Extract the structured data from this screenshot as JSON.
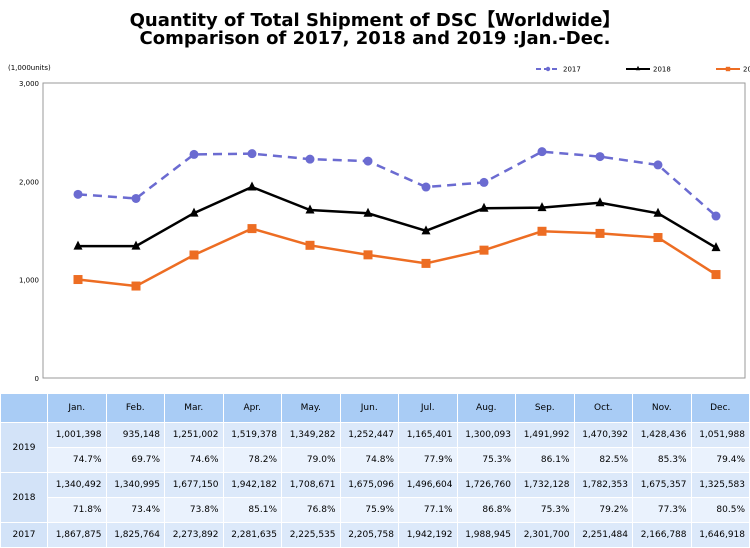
{
  "title_line1": "Quantity of Total Shipment of DSC【Worldwide】",
  "title_line2": "Comparison of 2017, 2018 and 2019 :Jan.-Dec.",
  "chart_data": {
    "type": "line",
    "title": "Quantity of Total Shipment of DSC【Worldwide】 Comparison of 2017, 2018 and 2019 :Jan.-Dec.",
    "unit_label": "(1,000units)",
    "categories": [
      "Jan.",
      "Feb.",
      "Mar.",
      "Apr.",
      "May.",
      "Jun.",
      "Jul.",
      "Aug.",
      "Sep.",
      "Oct.",
      "Nov.",
      "Dec."
    ],
    "ylim": [
      0,
      3000
    ],
    "yticks": [
      "0",
      "1,000",
      "2,000",
      "3,000"
    ],
    "legend_position": "top-right",
    "grid": false,
    "series": [
      {
        "name": "2017",
        "color": "#6b6bd1",
        "style": "dashed",
        "marker": "circle",
        "values": [
          1867.875,
          1825.764,
          2273.892,
          2281.635,
          2225.535,
          2205.758,
          1942.192,
          1988.945,
          2301.7,
          2251.484,
          2166.788,
          1646.918
        ]
      },
      {
        "name": "2018",
        "color": "#000000",
        "style": "solid",
        "marker": "triangle",
        "values": [
          1340.492,
          1340.995,
          1677.15,
          1942.182,
          1708.671,
          1675.096,
          1496.604,
          1726.76,
          1732.128,
          1782.353,
          1675.357,
          1325.583
        ]
      },
      {
        "name": "2019",
        "color": "#ed6d23",
        "style": "solid",
        "marker": "square",
        "values": [
          1001.398,
          935.148,
          1251.002,
          1519.378,
          1349.282,
          1252.447,
          1165.401,
          1300.093,
          1491.992,
          1470.392,
          1428.436,
          1051.988
        ]
      }
    ]
  },
  "table": {
    "headers": [
      "Jan.",
      "Feb.",
      "Mar.",
      "Apr.",
      "May.",
      "Jun.",
      "Jul.",
      "Aug.",
      "Sep.",
      "Oct.",
      "Nov.",
      "Dec."
    ],
    "rows": [
      {
        "year": "2019",
        "values": [
          "1,001,398",
          "935,148",
          "1,251,002",
          "1,519,378",
          "1,349,282",
          "1,252,447",
          "1,165,401",
          "1,300,093",
          "1,491,992",
          "1,470,392",
          "1,428,436",
          "1,051,988"
        ],
        "pct": [
          "74.7%",
          "69.7%",
          "74.6%",
          "78.2%",
          "79.0%",
          "74.8%",
          "77.9%",
          "75.3%",
          "86.1%",
          "82.5%",
          "85.3%",
          "79.4%"
        ]
      },
      {
        "year": "2018",
        "values": [
          "1,340,492",
          "1,340,995",
          "1,677,150",
          "1,942,182",
          "1,708,671",
          "1,675,096",
          "1,496,604",
          "1,726,760",
          "1,732,128",
          "1,782,353",
          "1,675,357",
          "1,325,583"
        ],
        "pct": [
          "71.8%",
          "73.4%",
          "73.8%",
          "85.1%",
          "76.8%",
          "75.9%",
          "77.1%",
          "86.8%",
          "75.3%",
          "79.2%",
          "77.3%",
          "80.5%"
        ]
      },
      {
        "year": "2017",
        "values": [
          "1,867,875",
          "1,825,764",
          "2,273,892",
          "2,281,635",
          "2,225,535",
          "2,205,758",
          "1,942,192",
          "1,988,945",
          "2,301,700",
          "2,251,484",
          "2,166,788",
          "1,646,918"
        ]
      }
    ]
  }
}
